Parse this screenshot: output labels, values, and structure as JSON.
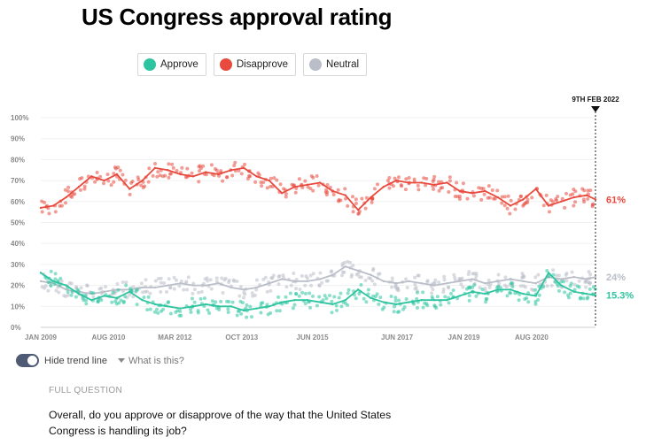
{
  "title": "US Congress approval rating",
  "legend": [
    {
      "label": "Approve",
      "color": "#2ec4a0"
    },
    {
      "label": "Disapprove",
      "color": "#e84a3e"
    },
    {
      "label": "Neutral",
      "color": "#b9bec8"
    }
  ],
  "chart_data": {
    "type": "line",
    "title": "US Congress approval rating",
    "xlabel": "",
    "ylabel": "",
    "ylim": [
      0,
      100
    ],
    "y_ticks": [
      "0%",
      "10%",
      "20%",
      "30%",
      "40%",
      "50%",
      "60%",
      "70%",
      "80%",
      "90%",
      "100%"
    ],
    "x_range": [
      2009.0,
      2022.11
    ],
    "x_ticks": [
      {
        "label": "JAN 2009",
        "year": 2009.0
      },
      {
        "label": "AUG 2010",
        "year": 2010.6
      },
      {
        "label": "MAR 2012",
        "year": 2012.17
      },
      {
        "label": "OCT 2013",
        "year": 2013.75
      },
      {
        "label": "JUN 2015",
        "year": 2015.42
      },
      {
        "label": "JUN 2017",
        "year": 2017.42
      },
      {
        "label": "JAN 2019",
        "year": 2019.0
      },
      {
        "label": "AUG 2020",
        "year": 2020.6
      }
    ],
    "marker": {
      "label": "9TH FEB 2022",
      "year": 2022.11
    },
    "series": [
      {
        "name": "Disapprove",
        "color": "#e84a3e",
        "end_label": "61%",
        "x": [
          2009.0,
          2009.3,
          2009.6,
          2009.9,
          2010.2,
          2010.5,
          2010.8,
          2011.1,
          2011.4,
          2011.7,
          2012.0,
          2012.3,
          2012.6,
          2012.9,
          2013.2,
          2013.5,
          2013.8,
          2014.1,
          2014.4,
          2014.7,
          2015.0,
          2015.3,
          2015.6,
          2015.9,
          2016.2,
          2016.5,
          2016.8,
          2017.1,
          2017.4,
          2017.7,
          2018.0,
          2018.3,
          2018.6,
          2018.9,
          2019.2,
          2019.5,
          2019.8,
          2020.1,
          2020.4,
          2020.7,
          2021.0,
          2021.3,
          2021.6,
          2021.9,
          2022.11
        ],
        "values": [
          57,
          58,
          62,
          67,
          72,
          70,
          73,
          66,
          70,
          76,
          75,
          73,
          72,
          74,
          73,
          75,
          76,
          72,
          70,
          64,
          67,
          68,
          69,
          65,
          63,
          56,
          62,
          67,
          70,
          69,
          69,
          68,
          69,
          65,
          64,
          65,
          62,
          58,
          61,
          66,
          58,
          60,
          62,
          63,
          61
        ]
      },
      {
        "name": "Neutral",
        "color": "#b9bec8",
        "end_label": "24%",
        "x": [
          2009.0,
          2009.3,
          2009.6,
          2009.9,
          2010.2,
          2010.5,
          2010.8,
          2011.1,
          2011.4,
          2011.7,
          2012.0,
          2012.3,
          2012.6,
          2012.9,
          2013.2,
          2013.5,
          2013.8,
          2014.1,
          2014.4,
          2014.7,
          2015.0,
          2015.3,
          2015.6,
          2015.9,
          2016.2,
          2016.5,
          2016.8,
          2017.1,
          2017.4,
          2017.7,
          2018.0,
          2018.3,
          2018.6,
          2018.9,
          2019.2,
          2019.5,
          2019.8,
          2020.1,
          2020.4,
          2020.7,
          2021.0,
          2021.3,
          2021.6,
          2021.9,
          2022.11
        ],
        "values": [
          22,
          21,
          18,
          17,
          16,
          17,
          18,
          18,
          19,
          19,
          20,
          21,
          20,
          20,
          21,
          19,
          18,
          19,
          21,
          23,
          22,
          22,
          23,
          25,
          29,
          27,
          25,
          22,
          21,
          22,
          21,
          20,
          21,
          22,
          23,
          21,
          22,
          23,
          22,
          21,
          24,
          23,
          24,
          23,
          24
        ]
      },
      {
        "name": "Approve",
        "color": "#2ec4a0",
        "end_label": "15.3%",
        "x": [
          2009.0,
          2009.3,
          2009.6,
          2009.9,
          2010.2,
          2010.5,
          2010.8,
          2011.1,
          2011.4,
          2011.7,
          2012.0,
          2012.3,
          2012.6,
          2012.9,
          2013.2,
          2013.5,
          2013.8,
          2014.1,
          2014.4,
          2014.7,
          2015.0,
          2015.3,
          2015.6,
          2015.9,
          2016.2,
          2016.5,
          2016.8,
          2017.1,
          2017.4,
          2017.7,
          2018.0,
          2018.3,
          2018.6,
          2018.9,
          2019.2,
          2019.5,
          2019.8,
          2020.1,
          2020.4,
          2020.7,
          2021.0,
          2021.3,
          2021.6,
          2021.9,
          2022.11
        ],
        "values": [
          26,
          22,
          20,
          16,
          13,
          15,
          14,
          17,
          13,
          11,
          10,
          9,
          10,
          11,
          10,
          10,
          8,
          9,
          10,
          12,
          13,
          13,
          12,
          11,
          13,
          18,
          14,
          12,
          11,
          12,
          13,
          13,
          13,
          15,
          17,
          16,
          18,
          18,
          16,
          15,
          26,
          20,
          17,
          16,
          15.3
        ]
      }
    ]
  },
  "controls": {
    "hide_trend_label": "Hide trend line",
    "what_is_label": "What is this?"
  },
  "full_question": {
    "heading": "FULL QUESTION",
    "text": "Overall, do you approve or disapprove of the way that the United States Congress is handling its job?"
  }
}
